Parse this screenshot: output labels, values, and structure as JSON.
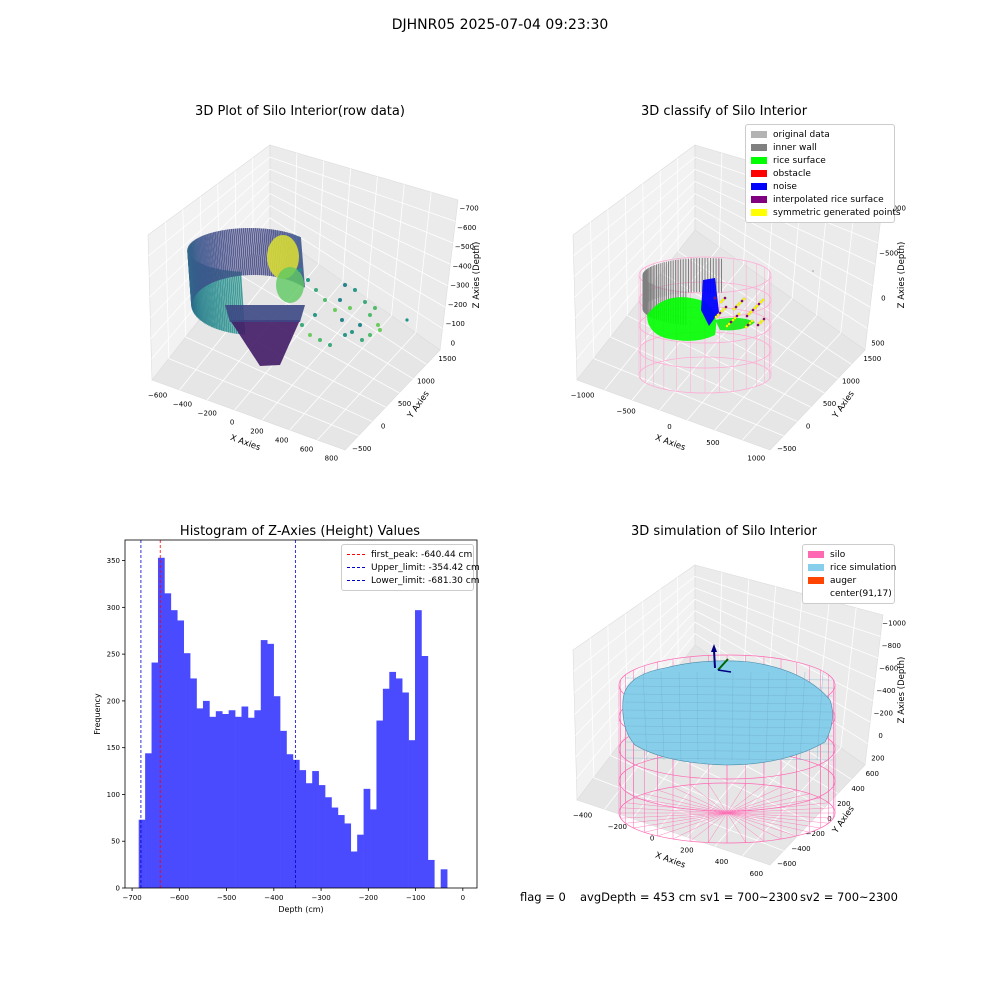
{
  "figure": {
    "suptitle": "DJHNR05 2025-07-04 09:23:30"
  },
  "panels": {
    "raw": {
      "title": "3D Plot of Silo Interior(row data)",
      "xlabel": "X Axies",
      "ylabel": "Y Axies",
      "zlabel": "Z Axies (Depth)",
      "xticks": [
        "−600",
        "−400",
        "−200",
        "0",
        "200",
        "400",
        "600",
        "800"
      ],
      "yticks": [
        "−500",
        "0",
        "500",
        "1000",
        "1500"
      ],
      "zticks": [
        "0",
        "−100",
        "−200",
        "−300",
        "−400",
        "−500",
        "−600",
        "−700"
      ],
      "colormap": "viridis"
    },
    "classify": {
      "title": "3D classify of Silo Interior",
      "xlabel": "X Axies",
      "ylabel": "Y Axies",
      "zlabel": "Z Axies (Depth)",
      "xticks": [
        "−1000",
        "−500",
        "0",
        "500",
        "1000"
      ],
      "yticks": [
        "−500",
        "0",
        "500",
        "1000",
        "1500"
      ],
      "zticks": [
        "500",
        "0",
        "−500",
        "−1000"
      ],
      "legend": [
        {
          "label": "original data",
          "color": "#b3b3b3"
        },
        {
          "label": "inner wall",
          "color": "#808080"
        },
        {
          "label": "rice surface",
          "color": "#00ff00"
        },
        {
          "label": "obstacle",
          "color": "#ff0000"
        },
        {
          "label": "noise",
          "color": "#0000ff"
        },
        {
          "label": "interpolated rice surface",
          "color": "#800080"
        },
        {
          "label": "symmetric generated points",
          "color": "#ffff00"
        }
      ]
    },
    "simulation": {
      "title": "3D simulation of Silo Interior",
      "xlabel": "X Axies",
      "ylabel": "Y Axies",
      "zlabel": "Z Axies (Depth)",
      "xticks": [
        "−400",
        "−200",
        "0",
        "200",
        "400",
        "600"
      ],
      "yticks": [
        "−600",
        "−400",
        "−200",
        "0",
        "200",
        "400",
        "600"
      ],
      "zticks": [
        "200",
        "0",
        "−200",
        "−400",
        "−600",
        "−800",
        "−1000"
      ],
      "legend": [
        {
          "label": "silo",
          "color": "#ff69b4"
        },
        {
          "label": "rice simulation",
          "color": "#87ceeb"
        },
        {
          "label": "auger",
          "color": "#ff4500"
        },
        {
          "label": "center(91,17)",
          "color": ""
        }
      ]
    }
  },
  "chart_data": {
    "type": "bar",
    "title": "Histogram of Z-Axies (Height) Values",
    "xlabel": "Depth (cm)",
    "ylabel": "Frequency",
    "xlim": [
      -715,
      30
    ],
    "ylim": [
      0,
      372
    ],
    "xticks": [
      -700,
      -600,
      -500,
      -400,
      -300,
      -200,
      -100,
      0
    ],
    "yticks": [
      0,
      50,
      100,
      150,
      200,
      250,
      300,
      350
    ],
    "bin_width": 13.6,
    "bin_start": -686,
    "values": [
      73,
      144,
      241,
      353,
      315,
      297,
      286,
      251,
      224,
      192,
      200,
      183,
      189,
      186,
      190,
      183,
      194,
      182,
      190,
      265,
      261,
      205,
      168,
      143,
      137,
      126,
      112,
      125,
      110,
      97,
      86,
      78,
      69,
      39,
      57,
      106,
      84,
      179,
      213,
      231,
      224,
      209,
      158,
      297,
      248,
      30,
      0,
      20
    ],
    "bar_color": "#4a4aff",
    "vlines": [
      {
        "label": "first_peak: -640.44 cm",
        "x": -640.44,
        "color": "#ff0000"
      },
      {
        "label": "Upper_limit: -354.42 cm",
        "x": -354.42,
        "color": "#0000cc"
      },
      {
        "label": "Lower_limit: -681.30 cm",
        "x": -681.3,
        "color": "#0000cc"
      }
    ],
    "legend_position": "upper right"
  },
  "footer": {
    "flag": "flag = 0",
    "avg_depth": "avgDepth = 453 cm",
    "sv1": "sv1 = 700~2300",
    "sv2": "sv2 = 700~2300"
  }
}
